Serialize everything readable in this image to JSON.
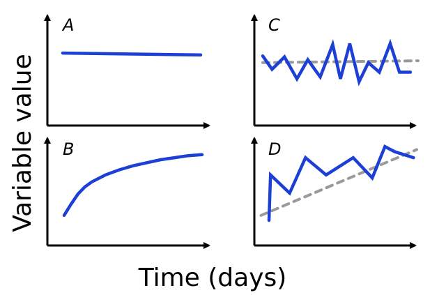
{
  "figure": {
    "ylabel": "Variable value",
    "xlabel": "Time (days)"
  },
  "chart_data": [
    {
      "type": "line",
      "panel": "A",
      "trend_color": "#1c3fd6",
      "series": [
        {
          "name": "",
          "color": "#1c3fd6",
          "style": "solid",
          "x": [
            0,
            1
          ],
          "y": [
            0.7,
            0.68
          ]
        }
      ],
      "xlim": [
        0,
        1
      ],
      "ylim": [
        0,
        1
      ],
      "grid": false,
      "legend": "none"
    },
    {
      "type": "line",
      "panel": "B",
      "series": [
        {
          "name": "",
          "color": "#1c3fd6",
          "style": "solid",
          "x": [
            0,
            0.05,
            0.1,
            0.15,
            0.2,
            0.3,
            0.4,
            0.5,
            0.6,
            0.7,
            0.8,
            0.9,
            1.0
          ],
          "y": [
            0.25,
            0.36,
            0.46,
            0.53,
            0.58,
            0.65,
            0.7,
            0.74,
            0.77,
            0.8,
            0.82,
            0.84,
            0.85
          ]
        }
      ],
      "xlim": [
        0,
        1
      ],
      "ylim": [
        0,
        1
      ],
      "grid": false,
      "legend": "none"
    },
    {
      "type": "line",
      "panel": "C",
      "series": [
        {
          "name": "",
          "color": "#1c3fd6",
          "style": "solid",
          "x": [
            0,
            0.06,
            0.14,
            0.22,
            0.29,
            0.37,
            0.45,
            0.5,
            0.56,
            0.62,
            0.68,
            0.75,
            0.82,
            0.88,
            0.95
          ],
          "y": [
            0.67,
            0.53,
            0.66,
            0.43,
            0.63,
            0.45,
            0.79,
            0.43,
            0.8,
            0.4,
            0.6,
            0.5,
            0.8,
            0.5,
            0.5
          ]
        },
        {
          "name": "",
          "color": "#9a9a9a",
          "style": "dashed",
          "x": [
            0,
            1
          ],
          "y": [
            0.6,
            0.62
          ]
        }
      ],
      "xlim": [
        0,
        1
      ],
      "ylim": [
        0,
        1
      ],
      "grid": false,
      "legend": "none"
    },
    {
      "type": "line",
      "panel": "D",
      "series": [
        {
          "name": "",
          "color": "#1c3fd6",
          "style": "solid",
          "x": [
            0.07,
            0.08,
            0.2,
            0.3,
            0.43,
            0.6,
            0.72,
            0.8,
            0.86,
            0.98
          ],
          "y": [
            0.2,
            0.65,
            0.47,
            0.82,
            0.65,
            0.82,
            0.62,
            0.93,
            0.88,
            0.82
          ]
        },
        {
          "name": "",
          "color": "#9a9a9a",
          "style": "dashed",
          "x": [
            0.02,
            1.0
          ],
          "y": [
            0.25,
            0.9
          ]
        }
      ],
      "xlim": [
        0,
        1
      ],
      "ylim": [
        0,
        1
      ],
      "grid": false,
      "legend": "none"
    }
  ]
}
